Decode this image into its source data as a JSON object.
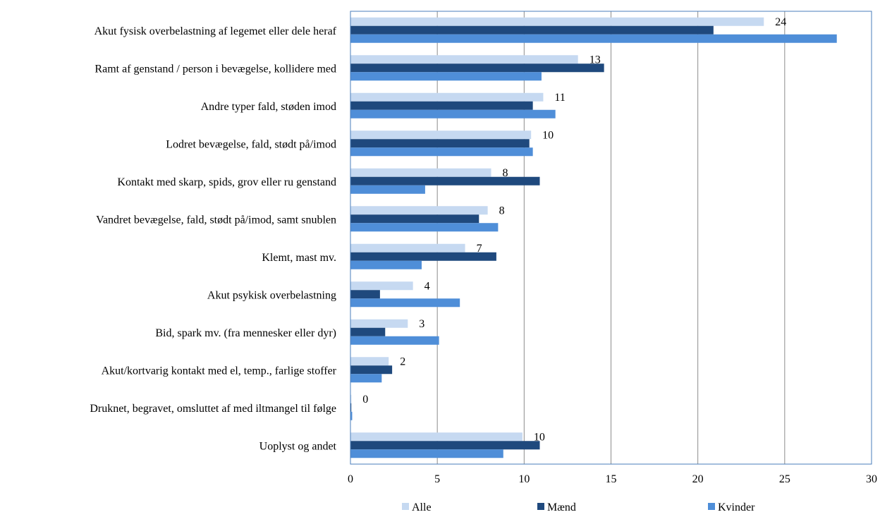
{
  "chart_data": {
    "type": "bar",
    "orientation": "horizontal",
    "title": "",
    "xlabel": "",
    "ylabel": "",
    "xlim": [
      0,
      30
    ],
    "xticks": [
      0,
      5,
      10,
      15,
      20,
      25,
      30
    ],
    "grid": "vertical",
    "legend_position": "bottom",
    "categories": [
      "Akut fysisk overbelastning af legemet eller dele heraf",
      "Ramt af genstand / person i bevægelse, kollidere med",
      "Andre typer fald, støden imod",
      "Lodret bevægelse, fald, stødt på/imod",
      "Kontakt med skarp, spids, grov eller ru genstand",
      "Vandret bevægelse, fald, stødt på/imod, samt snublen",
      "Klemt, mast mv.",
      "Akut psykisk overbelastning",
      "Bid, spark mv. (fra mennesker eller dyr)",
      "Akut/kortvarig kontakt med el, temp., farlige stoffer",
      "Druknet, begravet, omsluttet af med iltmangel til følge",
      "Uoplyst og andet"
    ],
    "series": [
      {
        "name": "Alle",
        "color": "#c6d9f1",
        "values": [
          23.8,
          13.1,
          11.1,
          10.4,
          8.1,
          7.9,
          6.6,
          3.6,
          3.3,
          2.2,
          0.05,
          9.9
        ]
      },
      {
        "name": "Mænd",
        "color": "#1f497d",
        "values": [
          20.9,
          14.6,
          10.5,
          10.3,
          10.9,
          7.4,
          8.4,
          1.7,
          2.0,
          2.4,
          0.05,
          10.9
        ]
      },
      {
        "name": "Kvinder",
        "color": "#4f8ed8",
        "values": [
          28.0,
          11.0,
          11.8,
          10.5,
          4.3,
          8.5,
          4.1,
          6.3,
          5.1,
          1.8,
          0.1,
          8.8
        ]
      }
    ],
    "data_labels": [
      "24",
      "13",
      "11",
      "10",
      "8",
      "8",
      "7",
      "4",
      "3",
      "2",
      "0",
      "10"
    ]
  }
}
